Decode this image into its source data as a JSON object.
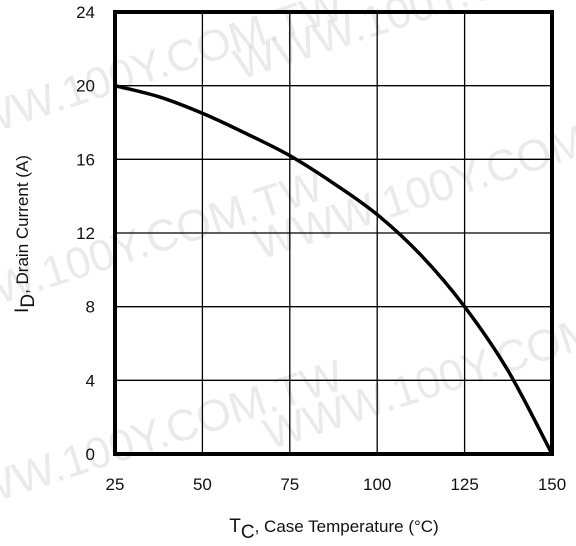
{
  "watermark": "WWW.100Y.COM.TW",
  "chart_data": {
    "type": "line",
    "title": "",
    "xlabel": {
      "main": "T",
      "sub": "C",
      "rest": ", Case Temperature (°C)"
    },
    "ylabel": {
      "main": "I",
      "sub": "D",
      "rest": ",  Drain Current (A)"
    },
    "xlim": [
      25,
      150
    ],
    "ylim": [
      0,
      24
    ],
    "xticks": [
      25,
      50,
      75,
      100,
      125,
      150
    ],
    "yticks": [
      0,
      4,
      8,
      12,
      16,
      20,
      24
    ],
    "grid": true,
    "series": [
      {
        "x": [
          25,
          37.5,
          50,
          62.5,
          75,
          87.5,
          100,
          112.5,
          125,
          137.5,
          150
        ],
        "y": [
          20,
          19.4,
          18.5,
          17.4,
          16.2,
          14.7,
          13,
          10.8,
          8,
          4.5,
          0
        ]
      }
    ]
  }
}
